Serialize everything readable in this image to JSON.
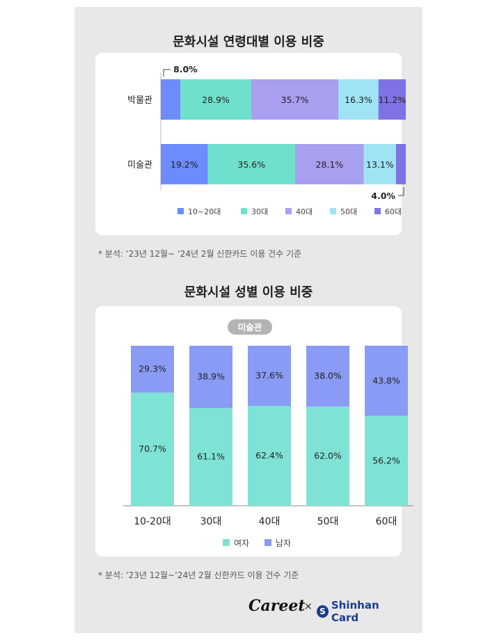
{
  "chart1": {
    "title": "문화시설 연령대별 이용 비중",
    "note": "* 분석: ‘23년 12월~ ‘24년 2월 신한카드 이용 건수 기준"
  },
  "chart2": {
    "title": "문화시설 성별 이용 비중",
    "badge": "미술관",
    "note": "* 분석: ’23년 12월~’24년 2월 신한카드 이용 건수 기준"
  },
  "footer": {
    "brand_left": "Careet",
    "times": "×",
    "brand_right": "Shinhan Card",
    "brand_right_icon": "S"
  },
  "colors": {
    "age10_20": "#6b8cfa",
    "age30": "#6ee0cc",
    "age40": "#a89ff0",
    "age50": "#9fe4f4",
    "age60": "#7e72e6",
    "female": "#7ee3d4",
    "male": "#8a9bf5"
  },
  "chart_data": [
    {
      "type": "bar",
      "orientation": "horizontal",
      "stacked": true,
      "title": "문화시설 연령대별 이용 비중",
      "categories": [
        "박물관",
        "미술관"
      ],
      "series": [
        {
          "name": "10~20대",
          "values": [
            8.0,
            19.2
          ],
          "labels": [
            "8.0%",
            "19.2%"
          ]
        },
        {
          "name": "30대",
          "values": [
            28.9,
            35.6
          ],
          "labels": [
            "28.9%",
            "35.6%"
          ]
        },
        {
          "name": "40대",
          "values": [
            35.7,
            28.1
          ],
          "labels": [
            "35.7%",
            "28.1%"
          ]
        },
        {
          "name": "50대",
          "values": [
            16.3,
            13.1
          ],
          "labels": [
            "16.3%",
            "13.1%"
          ]
        },
        {
          "name": "60대",
          "values": [
            11.2,
            4.0
          ],
          "labels": [
            "11.2%",
            "4.0%"
          ]
        }
      ],
      "xlim": [
        0,
        100
      ],
      "legend": "bottom"
    },
    {
      "type": "bar",
      "orientation": "vertical",
      "stacked": true,
      "title": "문화시설 성별 이용 비중",
      "categories": [
        "10-20대",
        "30대",
        "40대",
        "50대",
        "60대"
      ],
      "series": [
        {
          "name": "여자",
          "values": [
            70.7,
            61.1,
            62.4,
            62.0,
            56.2
          ],
          "labels": [
            "70.7%",
            "61.1%",
            "62.4%",
            "62.0%",
            "56.2%"
          ]
        },
        {
          "name": "남자",
          "values": [
            29.3,
            38.9,
            37.6,
            38.0,
            43.8
          ],
          "labels": [
            "29.3%",
            "38.9%",
            "37.6%",
            "38.0%",
            "43.8%"
          ]
        }
      ],
      "ylim": [
        0,
        100
      ],
      "legend": "bottom"
    }
  ]
}
